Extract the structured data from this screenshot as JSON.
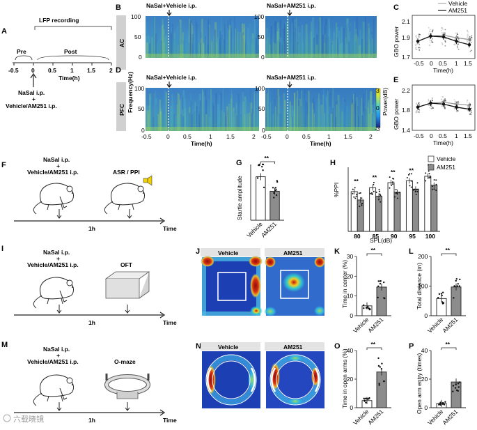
{
  "panels": {
    "A": {
      "letter": "A",
      "title": "LFP recording",
      "pre": "Pre",
      "post": "Post",
      "ticks": [
        "-0.5",
        "0",
        "0.5",
        "1",
        "1.5",
        "2"
      ],
      "xlabel": "Time(h)",
      "inj1": "NaSal i.p.",
      "plus": "+",
      "inj2": "Vehicle/AM251 i.p."
    },
    "B": {
      "letter": "B",
      "region": "AC",
      "title_left": "NaSal+Vehicle i.p.",
      "title_right": "NaSal+AM251 i.p.",
      "yticks": [
        "100",
        "50",
        "0"
      ]
    },
    "C": {
      "letter": "C",
      "legend": [
        "Vehicle",
        "AM251"
      ],
      "ylabel": "GBO power",
      "yticks": [
        "2.1",
        "1.9",
        "1.7"
      ],
      "xticks": [
        "-0.5",
        "0",
        "0.5",
        "1",
        "1.5"
      ],
      "xlabel": "Time(h)"
    },
    "D": {
      "letter": "D",
      "region": "PFC",
      "title_left": "NaSal+Vehicle i.p.",
      "title_right": "NaSal+AM251 i.p.",
      "yticks": [
        "100",
        "50",
        "0"
      ],
      "ylabel": "Frequency(Hz)",
      "xticks": [
        "-0.5",
        "0",
        "0.5",
        "1",
        "1.5",
        "2"
      ],
      "xlabel": "Time(h)",
      "cbar_ticks": [
        "3",
        "0",
        "-3"
      ],
      "cbar_label": "Power(dB)"
    },
    "E": {
      "letter": "E",
      "ylabel": "GBO power",
      "yticks": [
        "2.2",
        "1.8",
        "1.4"
      ],
      "xticks": [
        "-0.5",
        "0",
        "0.5",
        "1",
        "1.5"
      ],
      "xlabel": "Time(h)"
    },
    "F": {
      "letter": "F",
      "inj1": "NaSal i.p.",
      "plus": "+",
      "inj2": "Vehicle/AM251 i.p.",
      "test": "ASR / PPI",
      "interval": "1h",
      "time": "Time"
    },
    "G": {
      "letter": "G",
      "ylabel": "Startle amplitude",
      "cats": [
        "Vehicle",
        "AM251"
      ],
      "sig": "**"
    },
    "H": {
      "letter": "H",
      "ylabel": "%PPI",
      "xlabel": "SPL(dB)",
      "cats": [
        "80",
        "85",
        "90",
        "95",
        "100"
      ],
      "legend": [
        "Vehicle",
        "AM251"
      ],
      "sig": "**"
    },
    "I": {
      "letter": "I",
      "inj1": "NaSal i.p.",
      "plus": "+",
      "inj2": "Vehicle/AM251 i.p.",
      "test": "OFT",
      "interval": "1h",
      "time": "Time"
    },
    "J": {
      "letter": "J",
      "labels": [
        "Vehicle",
        "AM251"
      ]
    },
    "K": {
      "letter": "K",
      "ylabel": "Time in center (%)",
      "yticks": [
        "30",
        "20",
        "10",
        "0"
      ],
      "cats": [
        "Vehicle",
        "AM251"
      ],
      "sig": "**"
    },
    "L": {
      "letter": "L",
      "ylabel": "Total distance (m)",
      "yticks": [
        "200",
        "100",
        "0"
      ],
      "cats": [
        "Vehicle",
        "AM251"
      ],
      "sig": "**"
    },
    "M": {
      "letter": "M",
      "inj1": "NaSal i.p.",
      "plus": "+",
      "inj2": "Vehicle/AM251 i.p.",
      "test": "O-maze",
      "interval": "1h",
      "time": "Time"
    },
    "N": {
      "letter": "N",
      "labels": [
        "Vehicle",
        "AM251"
      ]
    },
    "O": {
      "letter": "O",
      "ylabel": "Time in open arms (%)",
      "yticks": [
        "40",
        "20",
        "0"
      ],
      "cats": [
        "Vehicle",
        "AM251"
      ],
      "sig": "**"
    },
    "P": {
      "letter": "P",
      "ylabel": "Open arm entry (times)",
      "yticks": [
        "40",
        "20",
        "0"
      ],
      "cats": [
        "Vehicle",
        "AM251"
      ],
      "sig": "**"
    }
  },
  "watermark": "六载晓镜",
  "colors": {
    "vehicle": "#ffffff",
    "am251": "#8c8c8c",
    "spec_bg": "#3f86c6",
    "heat_bg": "#1d3fb4"
  },
  "chart_data": [
    {
      "panel": "C",
      "type": "line",
      "xlabel": "Time(h)",
      "ylabel": "GBO power",
      "x": [
        -0.5,
        0,
        0.5,
        1,
        1.5
      ],
      "ylim": [
        1.7,
        2.2
      ],
      "series": [
        {
          "name": "Vehicle",
          "values": [
            1.9,
            1.96,
            1.97,
            1.94,
            1.92
          ]
        },
        {
          "name": "AM251",
          "values": [
            1.9,
            1.96,
            1.95,
            1.9,
            1.86
          ]
        }
      ]
    },
    {
      "panel": "E",
      "type": "line",
      "xlabel": "Time(h)",
      "ylabel": "GBO power",
      "x": [
        -0.5,
        0,
        0.5,
        1,
        1.5
      ],
      "ylim": [
        1.4,
        2.3
      ],
      "series": [
        {
          "values": [
            1.86,
            1.94,
            1.96,
            1.92,
            1.9
          ]
        },
        {
          "values": [
            1.86,
            1.94,
            1.92,
            1.86,
            1.82
          ]
        }
      ]
    },
    {
      "panel": "G",
      "type": "bar",
      "categories": [
        "Vehicle",
        "AM251"
      ],
      "values": [
        3.9,
        2.6
      ],
      "ylim": [
        0,
        5
      ],
      "ylabel": "Startle amplitude"
    },
    {
      "panel": "H",
      "type": "bar",
      "categories": [
        "80",
        "85",
        "90",
        "95",
        "100"
      ],
      "xlabel": "SPL(dB)",
      "ylabel": "%PPI",
      "ylim": [
        0,
        100
      ],
      "series": [
        {
          "name": "Vehicle",
          "values": [
            62,
            68,
            76,
            79,
            86
          ]
        },
        {
          "name": "AM251",
          "values": [
            49,
            55,
            61,
            66,
            72
          ]
        }
      ]
    },
    {
      "panel": "K",
      "type": "bar",
      "categories": [
        "Vehicle",
        "AM251"
      ],
      "values": [
        5,
        14.5
      ],
      "ylim": [
        0,
        30
      ],
      "ylabel": "Time in center (%)"
    },
    {
      "panel": "L",
      "type": "bar",
      "categories": [
        "Vehicle",
        "AM251"
      ],
      "values": [
        58,
        97
      ],
      "ylim": [
        0,
        200
      ],
      "ylabel": "Total distance (m)"
    },
    {
      "panel": "O",
      "type": "bar",
      "categories": [
        "Vehicle",
        "AM251"
      ],
      "values": [
        5,
        25
      ],
      "ylim": [
        0,
        40
      ],
      "ylabel": "Time in open arms (%)"
    },
    {
      "panel": "P",
      "type": "bar",
      "categories": [
        "Vehicle",
        "AM251"
      ],
      "values": [
        3,
        18
      ],
      "ylim": [
        0,
        40
      ],
      "ylabel": "Open arm entry (times)"
    }
  ]
}
